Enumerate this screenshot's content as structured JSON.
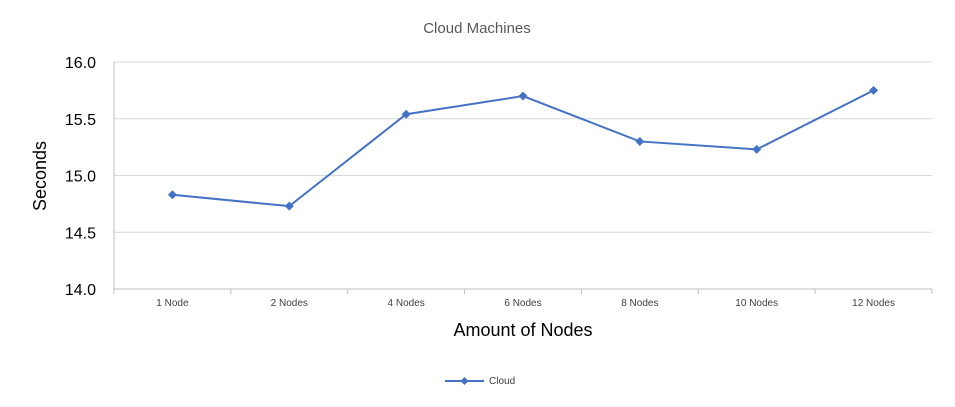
{
  "chart_data": {
    "type": "line",
    "title": "Cloud Machines",
    "xlabel": "Amount of Nodes",
    "ylabel": "Seconds",
    "categories": [
      "1 Node",
      "2 Nodes",
      "4 Nodes",
      "6 Nodes",
      "8 Nodes",
      "10 Nodes",
      "12 Nodes"
    ],
    "series": [
      {
        "name": "Cloud",
        "values": [
          14.83,
          14.73,
          15.54,
          15.7,
          15.3,
          15.23,
          15.75
        ],
        "color": "#4472c4",
        "marker": "diamond"
      }
    ],
    "ylim": [
      14.0,
      16.0
    ],
    "yticks": [
      "14.0",
      "14.5",
      "15.0",
      "15.5",
      "16.0"
    ],
    "grid": true,
    "legend_position": "bottom"
  }
}
